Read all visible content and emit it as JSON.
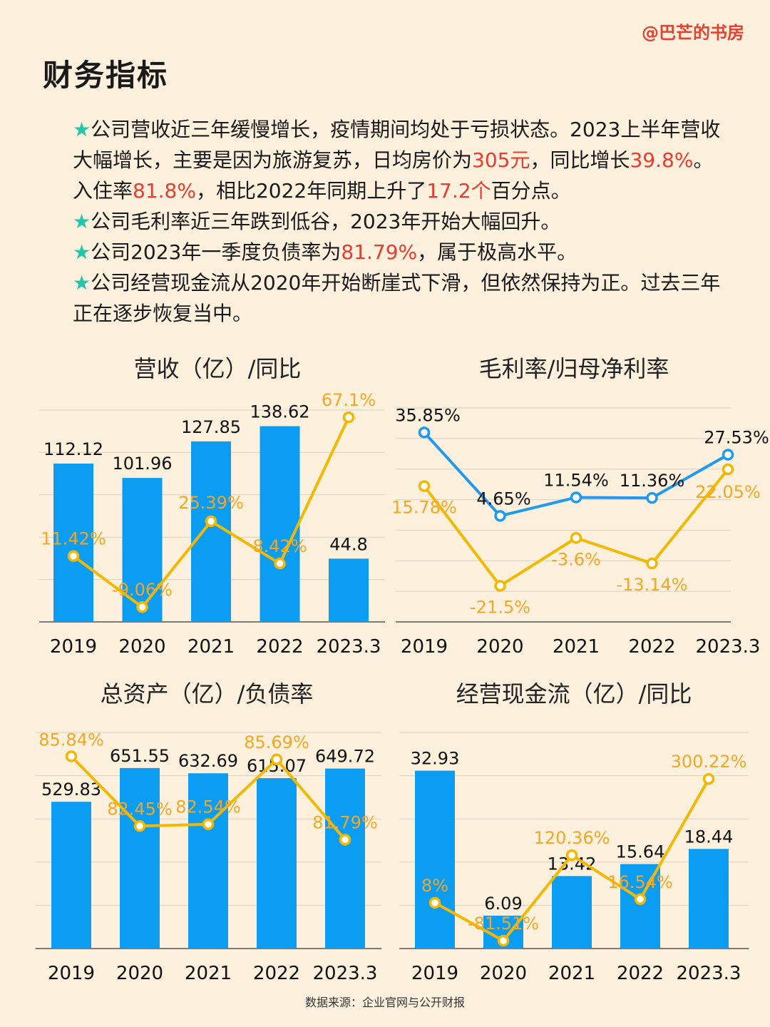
{
  "header": {
    "watermark": "@巴芒的书房",
    "title": "财务指标"
  },
  "summary": [
    [
      {
        "t": "★",
        "c": "star"
      },
      {
        "t": "公司营收近三年缓慢增长，疫情期间均处于亏损状态。2023上半年营收大幅增长，主要是因为旅游复苏，日均房价为"
      },
      {
        "t": "305元",
        "c": "red"
      },
      {
        "t": "，同比增长"
      },
      {
        "t": "39.8%",
        "c": "red"
      },
      {
        "t": "。入住率"
      },
      {
        "t": "81.8%",
        "c": "red"
      },
      {
        "t": "，相比2022年同期上升了"
      },
      {
        "t": "17.2个",
        "c": "red"
      },
      {
        "t": "百分点。"
      }
    ],
    [
      {
        "t": "★",
        "c": "star"
      },
      {
        "t": "公司毛利率近三年跌到低谷，2023年开始大幅回升。"
      }
    ],
    [
      {
        "t": "★",
        "c": "star"
      },
      {
        "t": "公司2023年一季度负债率为"
      },
      {
        "t": "81.79%",
        "c": "red"
      },
      {
        "t": "，属于极高水平。"
      }
    ],
    [
      {
        "t": "★",
        "c": "star"
      },
      {
        "t": "公司经营现金流从2020年开始断崖式下滑，但依然保持为正。过去三年正在逐步恢复当中。"
      }
    ]
  ],
  "colors": {
    "bar": "#0a9df2",
    "line_orange": "#f5b800",
    "line_blue": "#1f9af0",
    "label_orange": "#f5a623",
    "grid": "#d8cfc2"
  },
  "chart_data": [
    {
      "id": "revenue",
      "type": "bar+line",
      "title": "营收（亿）/同比",
      "categories": [
        "2019",
        "2020",
        "2021",
        "2022",
        "2023.3"
      ],
      "bars": {
        "values": [
          112.12,
          101.96,
          127.85,
          138.62,
          44.8
        ],
        "labels": [
          "112.12",
          "101.96",
          "127.85",
          "138.62",
          "44.8"
        ]
      },
      "line": {
        "values": [
          11.42,
          -9.06,
          25.39,
          8.42,
          67.1
        ],
        "labels": [
          "11.42%",
          "-9.06%",
          "25.39%",
          "8.42%",
          "67.1%"
        ]
      },
      "bar_range": [
        0,
        150
      ],
      "line_range": [
        -15,
        70
      ]
    },
    {
      "id": "margins",
      "type": "line",
      "title": "毛利率/归母净利率",
      "categories": [
        "2019",
        "2020",
        "2021",
        "2022",
        "2023.3"
      ],
      "series": [
        {
          "values": [
            35.85,
            4.65,
            11.54,
            11.36,
            27.53
          ],
          "labels": [
            "35.85%",
            "4.65%",
            "11.54%",
            "11.36%",
            "27.53%"
          ],
          "color": "blue"
        },
        {
          "values": [
            15.78,
            -21.5,
            -3.6,
            -13.14,
            22.05
          ],
          "labels": [
            "15.78%",
            "-21.5%",
            "-3.6%",
            "-13.14%",
            "22.05%"
          ],
          "color": "orange"
        }
      ],
      "y_range": [
        -35,
        45
      ]
    },
    {
      "id": "assets",
      "type": "bar+line",
      "title": "总资产（亿）/负债率",
      "categories": [
        "2019",
        "2020",
        "2021",
        "2022",
        "2023.3"
      ],
      "bars": {
        "values": [
          529.83,
          651.55,
          632.69,
          615.07,
          649.72
        ],
        "labels": [
          "529.83",
          "651.55",
          "632.69",
          "615.07",
          "649.72"
        ]
      },
      "line": {
        "values": [
          85.84,
          82.45,
          82.54,
          85.69,
          81.79
        ],
        "labels": [
          "85.84%",
          "82.45%",
          "82.54%",
          "85.69%",
          "81.79%"
        ]
      },
      "bar_range": [
        0,
        780
      ],
      "line_range": [
        76.5,
        87
      ]
    },
    {
      "id": "cashflow",
      "type": "bar+line",
      "title": "经营现金流（亿）/同比",
      "categories": [
        "2019",
        "2020",
        "2021",
        "2022",
        "2023.3"
      ],
      "bars": {
        "values": [
          32.93,
          6.09,
          13.42,
          15.64,
          18.44
        ],
        "labels": [
          "32.93",
          "6.09",
          "13.42",
          "15.64",
          "18.44"
        ]
      },
      "line": {
        "values": [
          8,
          -81.51,
          120.36,
          16.54,
          300.22
        ],
        "labels": [
          "8%",
          "-81.51%",
          "120.36%",
          "16.54%",
          "300.22%"
        ]
      },
      "bar_range": [
        0,
        40
      ],
      "line_range": [
        -100,
        410
      ]
    }
  ],
  "footer": {
    "source": "数据来源：企业官网与公开财报"
  }
}
